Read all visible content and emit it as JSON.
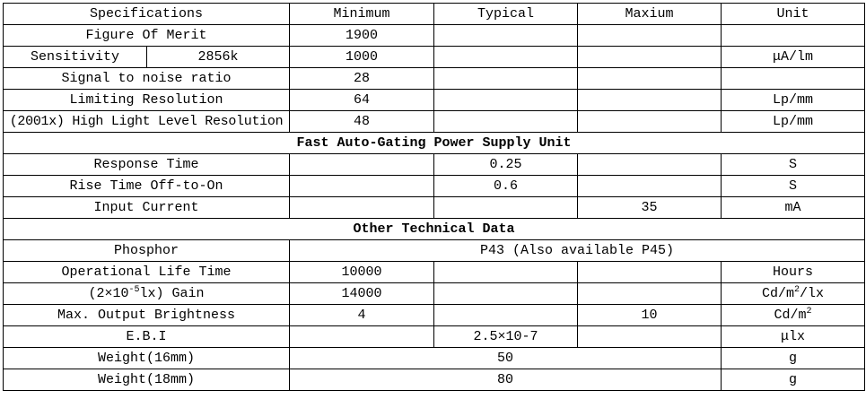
{
  "header": [
    "Specifications",
    "Minimum",
    "Typical",
    "Maxium",
    "Unit"
  ],
  "rows": [
    {
      "name": "Figure Of Merit",
      "min": "1900",
      "typ": "",
      "max": "",
      "unit": ""
    },
    {
      "name": "Sensitivity",
      "sub": "2856k",
      "min": "1000",
      "typ": "",
      "max": "",
      "unit": "μA/lm"
    },
    {
      "name": "Signal to noise ratio",
      "min": "28",
      "typ": "",
      "max": "",
      "unit": ""
    },
    {
      "name": "Limiting Resolution",
      "min": "64",
      "typ": "",
      "max": "",
      "unit": "Lp/mm"
    },
    {
      "name": "(2001x) High Light Level Resolution",
      "min": "48",
      "typ": "",
      "max": "",
      "unit": "Lp/mm"
    }
  ],
  "section_power": "Fast Auto-Gating Power Supply Unit",
  "power_rows": [
    {
      "name": "Response Time",
      "min": "",
      "typ": "0.25",
      "max": "",
      "unit": "S"
    },
    {
      "name": "Rise Time Off-to-On",
      "min": "",
      "typ": "0.6",
      "max": "",
      "unit": "S"
    },
    {
      "name": "Input Current",
      "min": "",
      "typ": "",
      "max": "35",
      "unit": "mA"
    }
  ],
  "section_other": "Other Technical Data",
  "phosphor": {
    "name": "Phosphor",
    "value": "P43 (Also available P45)"
  },
  "other_rows": [
    {
      "name": "Operational Life Time",
      "min": "10000",
      "typ": "",
      "max": "",
      "unit": "Hours"
    },
    {
      "name_pre": "(2×10",
      "name_sup": "-5",
      "name_post": "lx) Gain",
      "min": "14000",
      "typ": "",
      "max": "",
      "unit_pre": "Cd/m",
      "unit_sup": "2",
      "unit_post": "/lx"
    },
    {
      "name": "Max. Output Brightness",
      "min": "4",
      "typ": "",
      "max": "10",
      "unit_pre": "Cd/m",
      "unit_sup": "2",
      "unit_post": ""
    },
    {
      "name": "E.B.I",
      "min": "",
      "typ": "2.5×10-7",
      "max": "",
      "unit": "μlx"
    },
    {
      "name": "Weight(16mm)",
      "value": "50",
      "unit": "g"
    },
    {
      "name": "Weight(18mm)",
      "value": "80",
      "unit": "g"
    }
  ]
}
